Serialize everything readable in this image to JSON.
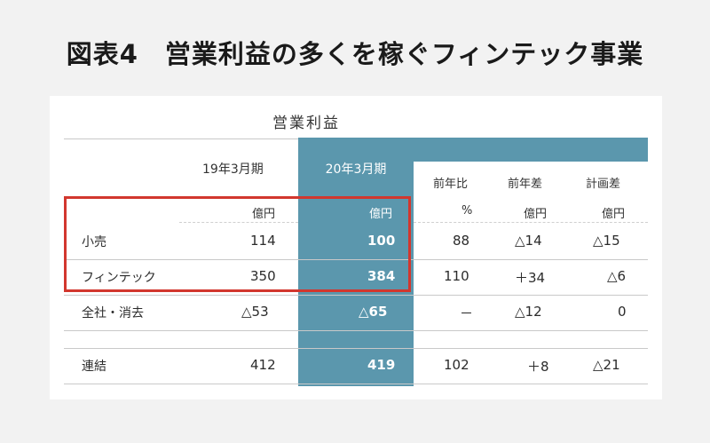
{
  "figure_title": "図表4　営業利益の多くを稼ぐフィンテック事業",
  "table": {
    "title": "営業利益",
    "columns": [
      "19年3月期",
      "20年3月期",
      "前年比",
      "前年差",
      "計画差"
    ],
    "units": [
      "億円",
      "億円",
      "%",
      "億円",
      "億円"
    ],
    "rows": [
      {
        "label": "小売",
        "values": [
          "114",
          "100",
          "88",
          "△14",
          "△15"
        ]
      },
      {
        "label": "フィンテック",
        "values": [
          "350",
          "384",
          "110",
          "＋34",
          "△6"
        ]
      },
      {
        "label": "全社・消去",
        "values": [
          "△53",
          "△65",
          "－",
          "△12",
          "0"
        ]
      },
      {
        "label": "連結",
        "values": [
          "412",
          "419",
          "102",
          "＋8",
          "△21"
        ]
      }
    ]
  },
  "colors": {
    "highlight_column": "#5b97ad",
    "highlight_box": "#d2372e"
  }
}
